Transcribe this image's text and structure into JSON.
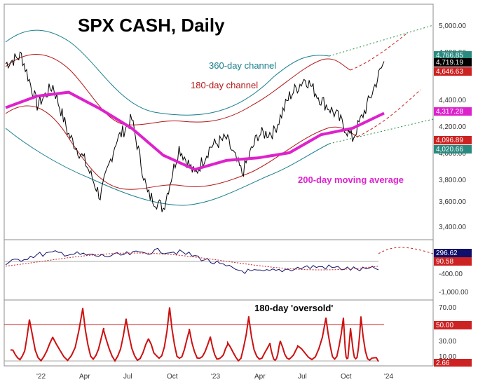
{
  "chart_data": [
    {
      "type": "line",
      "title": "SPX CASH, Daily",
      "annotations": {
        "ch360": "360-day channel",
        "ch180": "180-day channel",
        "ma200": "200-day moving average"
      },
      "x_ticks": [
        "'22",
        "Apr",
        "Jul",
        "Oct",
        "'23",
        "Apr",
        "Jul",
        "Oct",
        "'24"
      ],
      "y_ticks": [
        "5,000.00",
        "4,800.00",
        "4,400.00",
        "4,200.00",
        "4,000.00",
        "3,800.00",
        "3,600.00",
        "3,400.00"
      ],
      "ylim": [
        3300,
        5100
      ],
      "right_labels": [
        {
          "text": "4,766.85",
          "color": "#2a8a80",
          "text_color": "#ffffff"
        },
        {
          "text": "4,719.19",
          "color": "#000000",
          "text_color": "#ffffff"
        },
        {
          "text": "4,646.63",
          "color": "#cc2222",
          "text_color": "#ffffff"
        },
        {
          "text": "4,317.28",
          "color": "#dd22cc",
          "text_color": "#ffffff"
        },
        {
          "text": "4,096.89",
          "color": "#cc2222",
          "text_color": "#ffffff"
        },
        {
          "text": "4,020.66",
          "color": "#2a8a80",
          "text_color": "#ffffff"
        }
      ],
      "series": [
        {
          "name": "SPX",
          "color": "#000000",
          "months": [
            "2021-12",
            "2022-01",
            "2022-02",
            "2022-03",
            "2022-04",
            "2022-05",
            "2022-06",
            "2022-07",
            "2022-08",
            "2022-09",
            "2022-10",
            "2022-11",
            "2022-12",
            "2023-01",
            "2023-02",
            "2023-03",
            "2023-04",
            "2023-05",
            "2023-06",
            "2023-07",
            "2023-08",
            "2023-09",
            "2023-10",
            "2023-11",
            "2023-12"
          ],
          "values": [
            4700,
            4766,
            4380,
            4530,
            4150,
            3950,
            3670,
            4100,
            4270,
            3690,
            3580,
            4050,
            3840,
            4060,
            4120,
            3850,
            4150,
            4170,
            4450,
            4590,
            4420,
            4300,
            4120,
            4400,
            4719
          ]
        },
        {
          "name": "200-day moving average",
          "color": "#dd22cc",
          "months": [
            "2021-12",
            "2022-02",
            "2022-04",
            "2022-06",
            "2022-08",
            "2022-10",
            "2022-12",
            "2023-02",
            "2023-04",
            "2023-06",
            "2023-08",
            "2023-10",
            "2023-12"
          ],
          "values": [
            4360,
            4450,
            4480,
            4350,
            4200,
            3990,
            3880,
            3950,
            3970,
            4010,
            4150,
            4200,
            4317
          ]
        }
      ]
    },
    {
      "type": "line",
      "y_ticks": [
        "-400.00",
        "-1,000.00"
      ],
      "right_labels": [
        {
          "text": "296.62",
          "color": "#10106a",
          "text_color": "#ffffff"
        },
        {
          "text": "90.58",
          "color": "#cc2222",
          "text_color": "#ffffff"
        }
      ]
    },
    {
      "type": "line",
      "annotation": "180-day 'oversold'",
      "y_ticks": [
        "70.00",
        "30.00",
        "10.00"
      ],
      "right_labels": [
        {
          "text": "50.00",
          "color": "#cc2222",
          "text_color": "#ffffff"
        },
        {
          "text": "2.66",
          "color": "#cc2222",
          "text_color": "#ffffff"
        }
      ]
    }
  ]
}
